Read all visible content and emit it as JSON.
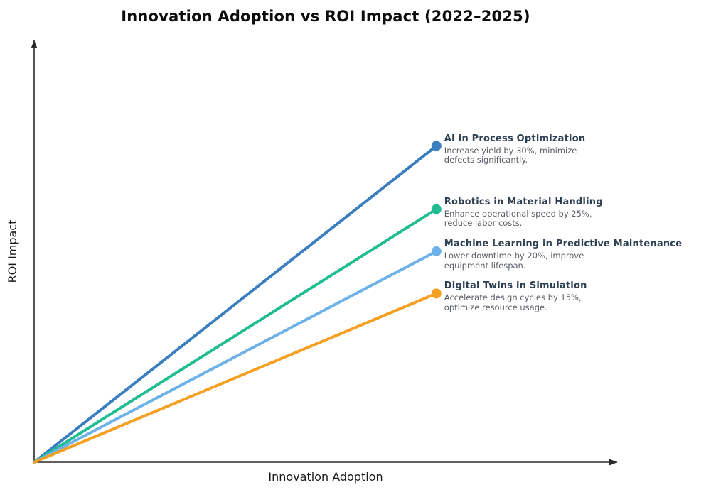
{
  "title": "Innovation Adoption vs ROI Impact (2022–2025)",
  "chart_data": {
    "type": "line",
    "title": "Innovation Adoption vs ROI Impact (2022–2025)",
    "xlabel": "Innovation Adoption",
    "ylabel": "ROI Impact",
    "x_range": [
      0,
      1
    ],
    "y_range": [
      0,
      1
    ],
    "grid": false,
    "legend_position": "none",
    "tick_labels": "none",
    "axis_color": "#2b2b2b",
    "series": [
      {
        "name": "AI in Process Optimization",
        "description": "Increase yield by 30%, minimize\ndefects significantly.",
        "color": "#3a7ebf",
        "start": [
          0,
          0
        ],
        "end": [
          0.69,
          0.75
        ]
      },
      {
        "name": "Robotics in Material Handling",
        "description": "Enhance operational speed by 25%,\nreduce labor costs.",
        "color": "#20bd92",
        "start": [
          0,
          0
        ],
        "end": [
          0.69,
          0.6
        ]
      },
      {
        "name": "Machine Learning in Predictive Maintenance",
        "description": "Lower downtime by 20%, improve\nequipment lifespan.",
        "color": "#6cb2e8",
        "start": [
          0,
          0
        ],
        "end": [
          0.69,
          0.5
        ]
      },
      {
        "name": "Digital Twins in Simulation",
        "description": "Accelerate design cycles by 15%,\noptimize resource usage.",
        "color": "#f5a023",
        "start": [
          0,
          0
        ],
        "end": [
          0.69,
          0.4
        ]
      }
    ]
  }
}
